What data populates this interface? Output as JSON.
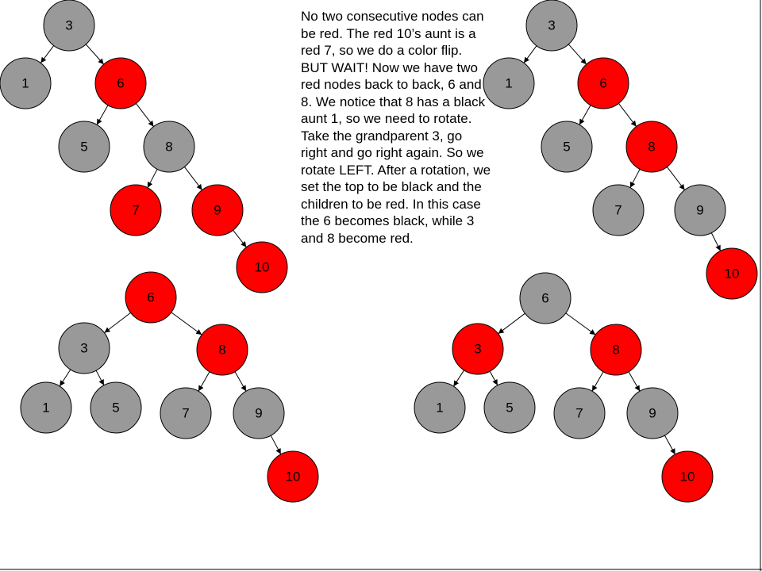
{
  "explanation": "No two consecutive nodes can be red. The red 10’s aunt is a red 7, so we do a color flip. BUT WAIT! Now we have two red nodes back to back, 6 and 8. We notice that 8 has a black aunt 1, so we need to rotate. Take the grandparent 3, go right and go right again. So we rotate LEFT. After a rotation, we set the top to be black and the children to be red. In this case the 6 becomes black, while 3 and 8 become red.",
  "colors": {
    "red": "#ff0000",
    "black": "#999999",
    "stroke": "#000000"
  },
  "trees": [
    {
      "id": "before-color-flip",
      "nodes": [
        {
          "id": "n3",
          "label": "3",
          "color": "black"
        },
        {
          "id": "n1",
          "label": "1",
          "color": "black"
        },
        {
          "id": "n6",
          "label": "6",
          "color": "red"
        },
        {
          "id": "n5",
          "label": "5",
          "color": "black"
        },
        {
          "id": "n8",
          "label": "8",
          "color": "black"
        },
        {
          "id": "n7",
          "label": "7",
          "color": "red"
        },
        {
          "id": "n9",
          "label": "9",
          "color": "red"
        },
        {
          "id": "n10",
          "label": "10",
          "color": "red"
        }
      ],
      "edges": [
        [
          "n3",
          "n1"
        ],
        [
          "n3",
          "n6"
        ],
        [
          "n6",
          "n5"
        ],
        [
          "n6",
          "n8"
        ],
        [
          "n8",
          "n7"
        ],
        [
          "n8",
          "n9"
        ],
        [
          "n9",
          "n10"
        ]
      ]
    },
    {
      "id": "after-color-flip",
      "nodes": [
        {
          "id": "n3",
          "label": "3",
          "color": "black"
        },
        {
          "id": "n1",
          "label": "1",
          "color": "black"
        },
        {
          "id": "n6",
          "label": "6",
          "color": "red"
        },
        {
          "id": "n5",
          "label": "5",
          "color": "black"
        },
        {
          "id": "n8",
          "label": "8",
          "color": "red"
        },
        {
          "id": "n7",
          "label": "7",
          "color": "black"
        },
        {
          "id": "n9",
          "label": "9",
          "color": "black"
        },
        {
          "id": "n10",
          "label": "10",
          "color": "red"
        }
      ],
      "edges": [
        [
          "n3",
          "n1"
        ],
        [
          "n3",
          "n6"
        ],
        [
          "n6",
          "n5"
        ],
        [
          "n6",
          "n8"
        ],
        [
          "n8",
          "n7"
        ],
        [
          "n8",
          "n9"
        ],
        [
          "n9",
          "n10"
        ]
      ]
    },
    {
      "id": "after-rotation",
      "nodes": [
        {
          "id": "n6",
          "label": "6",
          "color": "red"
        },
        {
          "id": "n3",
          "label": "3",
          "color": "black"
        },
        {
          "id": "n8",
          "label": "8",
          "color": "red"
        },
        {
          "id": "n1",
          "label": "1",
          "color": "black"
        },
        {
          "id": "n5",
          "label": "5",
          "color": "black"
        },
        {
          "id": "n7",
          "label": "7",
          "color": "black"
        },
        {
          "id": "n9",
          "label": "9",
          "color": "black"
        },
        {
          "id": "n10",
          "label": "10",
          "color": "red"
        }
      ],
      "edges": [
        [
          "n6",
          "n3"
        ],
        [
          "n6",
          "n8"
        ],
        [
          "n3",
          "n1"
        ],
        [
          "n3",
          "n5"
        ],
        [
          "n8",
          "n7"
        ],
        [
          "n8",
          "n9"
        ],
        [
          "n9",
          "n10"
        ]
      ]
    },
    {
      "id": "after-recolor",
      "nodes": [
        {
          "id": "n6",
          "label": "6",
          "color": "black"
        },
        {
          "id": "n3",
          "label": "3",
          "color": "red"
        },
        {
          "id": "n8",
          "label": "8",
          "color": "red"
        },
        {
          "id": "n1",
          "label": "1",
          "color": "black"
        },
        {
          "id": "n5",
          "label": "5",
          "color": "black"
        },
        {
          "id": "n7",
          "label": "7",
          "color": "black"
        },
        {
          "id": "n9",
          "label": "9",
          "color": "black"
        },
        {
          "id": "n10",
          "label": "10",
          "color": "red"
        }
      ],
      "edges": [
        [
          "n6",
          "n3"
        ],
        [
          "n6",
          "n8"
        ],
        [
          "n3",
          "n1"
        ],
        [
          "n3",
          "n5"
        ],
        [
          "n8",
          "n7"
        ],
        [
          "n8",
          "n9"
        ],
        [
          "n9",
          "n10"
        ]
      ]
    }
  ]
}
